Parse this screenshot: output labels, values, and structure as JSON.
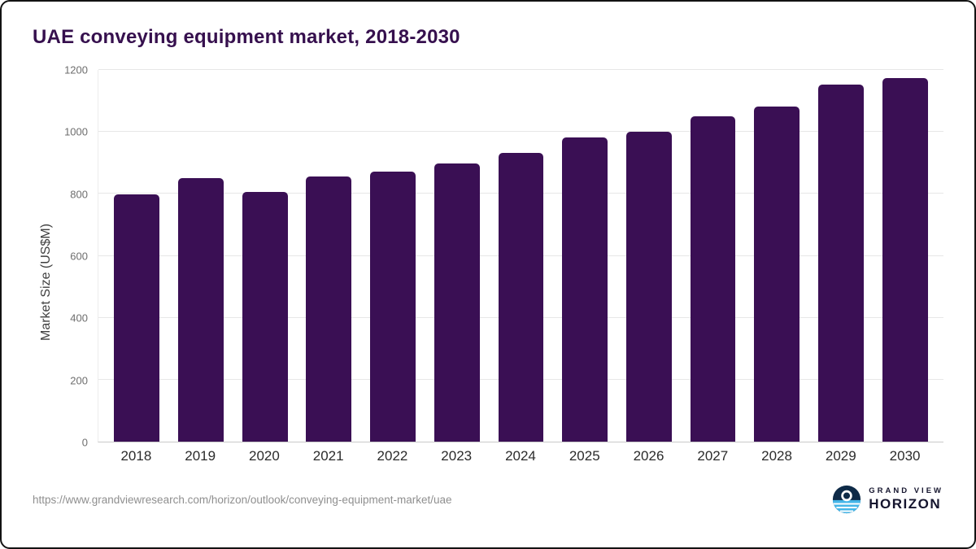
{
  "page": {
    "title": "UAE conveying equipment market, 2018-2030",
    "source_url": "https://www.grandviewresearch.com/horizon/outlook/conveying-equipment-market/uae",
    "logo": {
      "line1": "GRAND VIEW",
      "line2": "HORIZON"
    }
  },
  "colors": {
    "bar": "#3a0f54",
    "title": "#36104e",
    "grid": "#e7e7e7",
    "axis": "#c9c9c9",
    "tick_label": "#6e6e6e",
    "x_label": "#2b2b2b",
    "url": "#8f8f8f",
    "logo_navy": "#0e2a47",
    "logo_cyan": "#45b6e8"
  },
  "chart_data": {
    "type": "bar",
    "title": "UAE conveying equipment market, 2018-2030",
    "xlabel": "",
    "ylabel": "Market Size (US$M)",
    "categories": [
      "2018",
      "2019",
      "2020",
      "2021",
      "2022",
      "2023",
      "2024",
      "2025",
      "2026",
      "2027",
      "2028",
      "2029",
      "2030"
    ],
    "values": [
      798,
      850,
      805,
      855,
      872,
      898,
      932,
      982,
      1000,
      1050,
      1082,
      1152,
      1175
    ],
    "ylim": [
      0,
      1200
    ],
    "yticks": [
      0,
      200,
      400,
      600,
      800,
      1000,
      1200
    ],
    "grid": true,
    "legend": false
  }
}
